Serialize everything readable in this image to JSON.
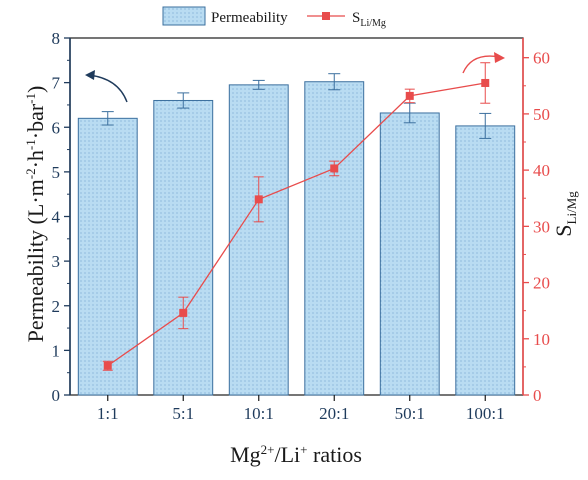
{
  "chart_data": {
    "type": "bar+line",
    "categories": [
      "1:1",
      "5:1",
      "10:1",
      "20:1",
      "50:1",
      "100:1"
    ],
    "series": [
      {
        "name": "Permeability",
        "kind": "bar",
        "axis": "left",
        "values": [
          6.2,
          6.6,
          6.95,
          7.02,
          6.32,
          6.03
        ],
        "errors": [
          0.15,
          0.17,
          0.1,
          0.18,
          0.22,
          0.28
        ]
      },
      {
        "name": "S",
        "name_subscript": "Li/Mg",
        "kind": "line",
        "axis": "right",
        "values": [
          5.2,
          14.6,
          34.8,
          40.3,
          53.2,
          55.5
        ],
        "errors": [
          0.8,
          2.8,
          4.0,
          1.3,
          1.2,
          3.6
        ]
      }
    ],
    "xlabel": {
      "base": "Mg",
      "sup1": "2+",
      "mid": "/Li",
      "sup2": "+",
      "tail": " ratios"
    },
    "ylabel_left": {
      "text": "Permeability (L·m",
      "sup1": "-2",
      "t2": "·h",
      "sup2": "-1",
      "t3": "·bar",
      "sup3": "-1",
      "t4": ")"
    },
    "ylabel_right": {
      "base": "S",
      "sub": "Li/Mg"
    },
    "ylim_left": [
      0,
      8
    ],
    "ylim_right": [
      0,
      63.5
    ],
    "yticks_left": [
      "0",
      "1",
      "2",
      "3",
      "4",
      "5",
      "6",
      "7",
      "8"
    ],
    "yticks_right": [
      "0",
      "10",
      "20",
      "30",
      "40",
      "50",
      "60"
    ],
    "legend_position": "top-center",
    "grid": false,
    "colors": {
      "bar_fill": "#b9dcf2",
      "bar_edge": "#3b6f9e",
      "line": "#e84c4c",
      "left_axis": "#1f3b5c",
      "right_axis": "#e84c4c"
    }
  }
}
